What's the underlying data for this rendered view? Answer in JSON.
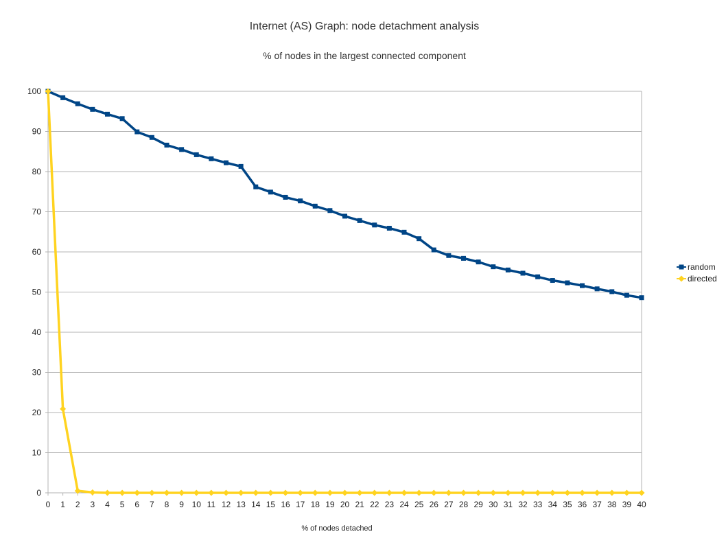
{
  "chart_data": {
    "type": "line",
    "title": "Internet (AS) Graph: node detachment analysis",
    "subtitle": "% of nodes in the largest connected component",
    "xlabel": "% of nodes detached",
    "ylabel": "",
    "x": [
      0,
      1,
      2,
      3,
      4,
      5,
      6,
      7,
      8,
      9,
      10,
      11,
      12,
      13,
      14,
      15,
      16,
      17,
      18,
      19,
      20,
      21,
      22,
      23,
      24,
      25,
      26,
      27,
      28,
      29,
      30,
      31,
      32,
      33,
      34,
      35,
      36,
      37,
      38,
      39,
      40
    ],
    "xlim": [
      0,
      40
    ],
    "ylim": [
      0,
      100
    ],
    "yticks": [
      0,
      10,
      20,
      30,
      40,
      50,
      60,
      70,
      80,
      90,
      100
    ],
    "grid": true,
    "legend_position": "right",
    "series": [
      {
        "name": "random",
        "color": "#004586",
        "marker": "square",
        "values": [
          100,
          98.4,
          96.9,
          95.5,
          94.3,
          93.2,
          89.9,
          88.5,
          86.6,
          85.5,
          84.2,
          83.2,
          82.2,
          81.3,
          76.2,
          74.9,
          73.6,
          72.7,
          71.4,
          70.3,
          68.9,
          67.8,
          66.7,
          65.9,
          64.9,
          63.3,
          60.5,
          59.1,
          58.4,
          57.5,
          56.3,
          55.5,
          54.7,
          53.8,
          52.9,
          52.3,
          51.6,
          50.8,
          50.1,
          49.2,
          48.6
        ]
      },
      {
        "name": "directed",
        "color": "#ffd320",
        "marker": "diamond",
        "values": [
          100,
          20.9,
          0.5,
          0.1,
          0,
          0,
          0,
          0,
          0,
          0,
          0,
          0,
          0,
          0,
          0,
          0,
          0,
          0,
          0,
          0,
          0,
          0,
          0,
          0,
          0,
          0,
          0,
          0,
          0,
          0,
          0,
          0,
          0,
          0,
          0,
          0,
          0,
          0,
          0,
          0,
          0
        ]
      }
    ],
    "colors": {
      "grid": "#b3b3b3",
      "axis": "#b3b3b3"
    }
  }
}
